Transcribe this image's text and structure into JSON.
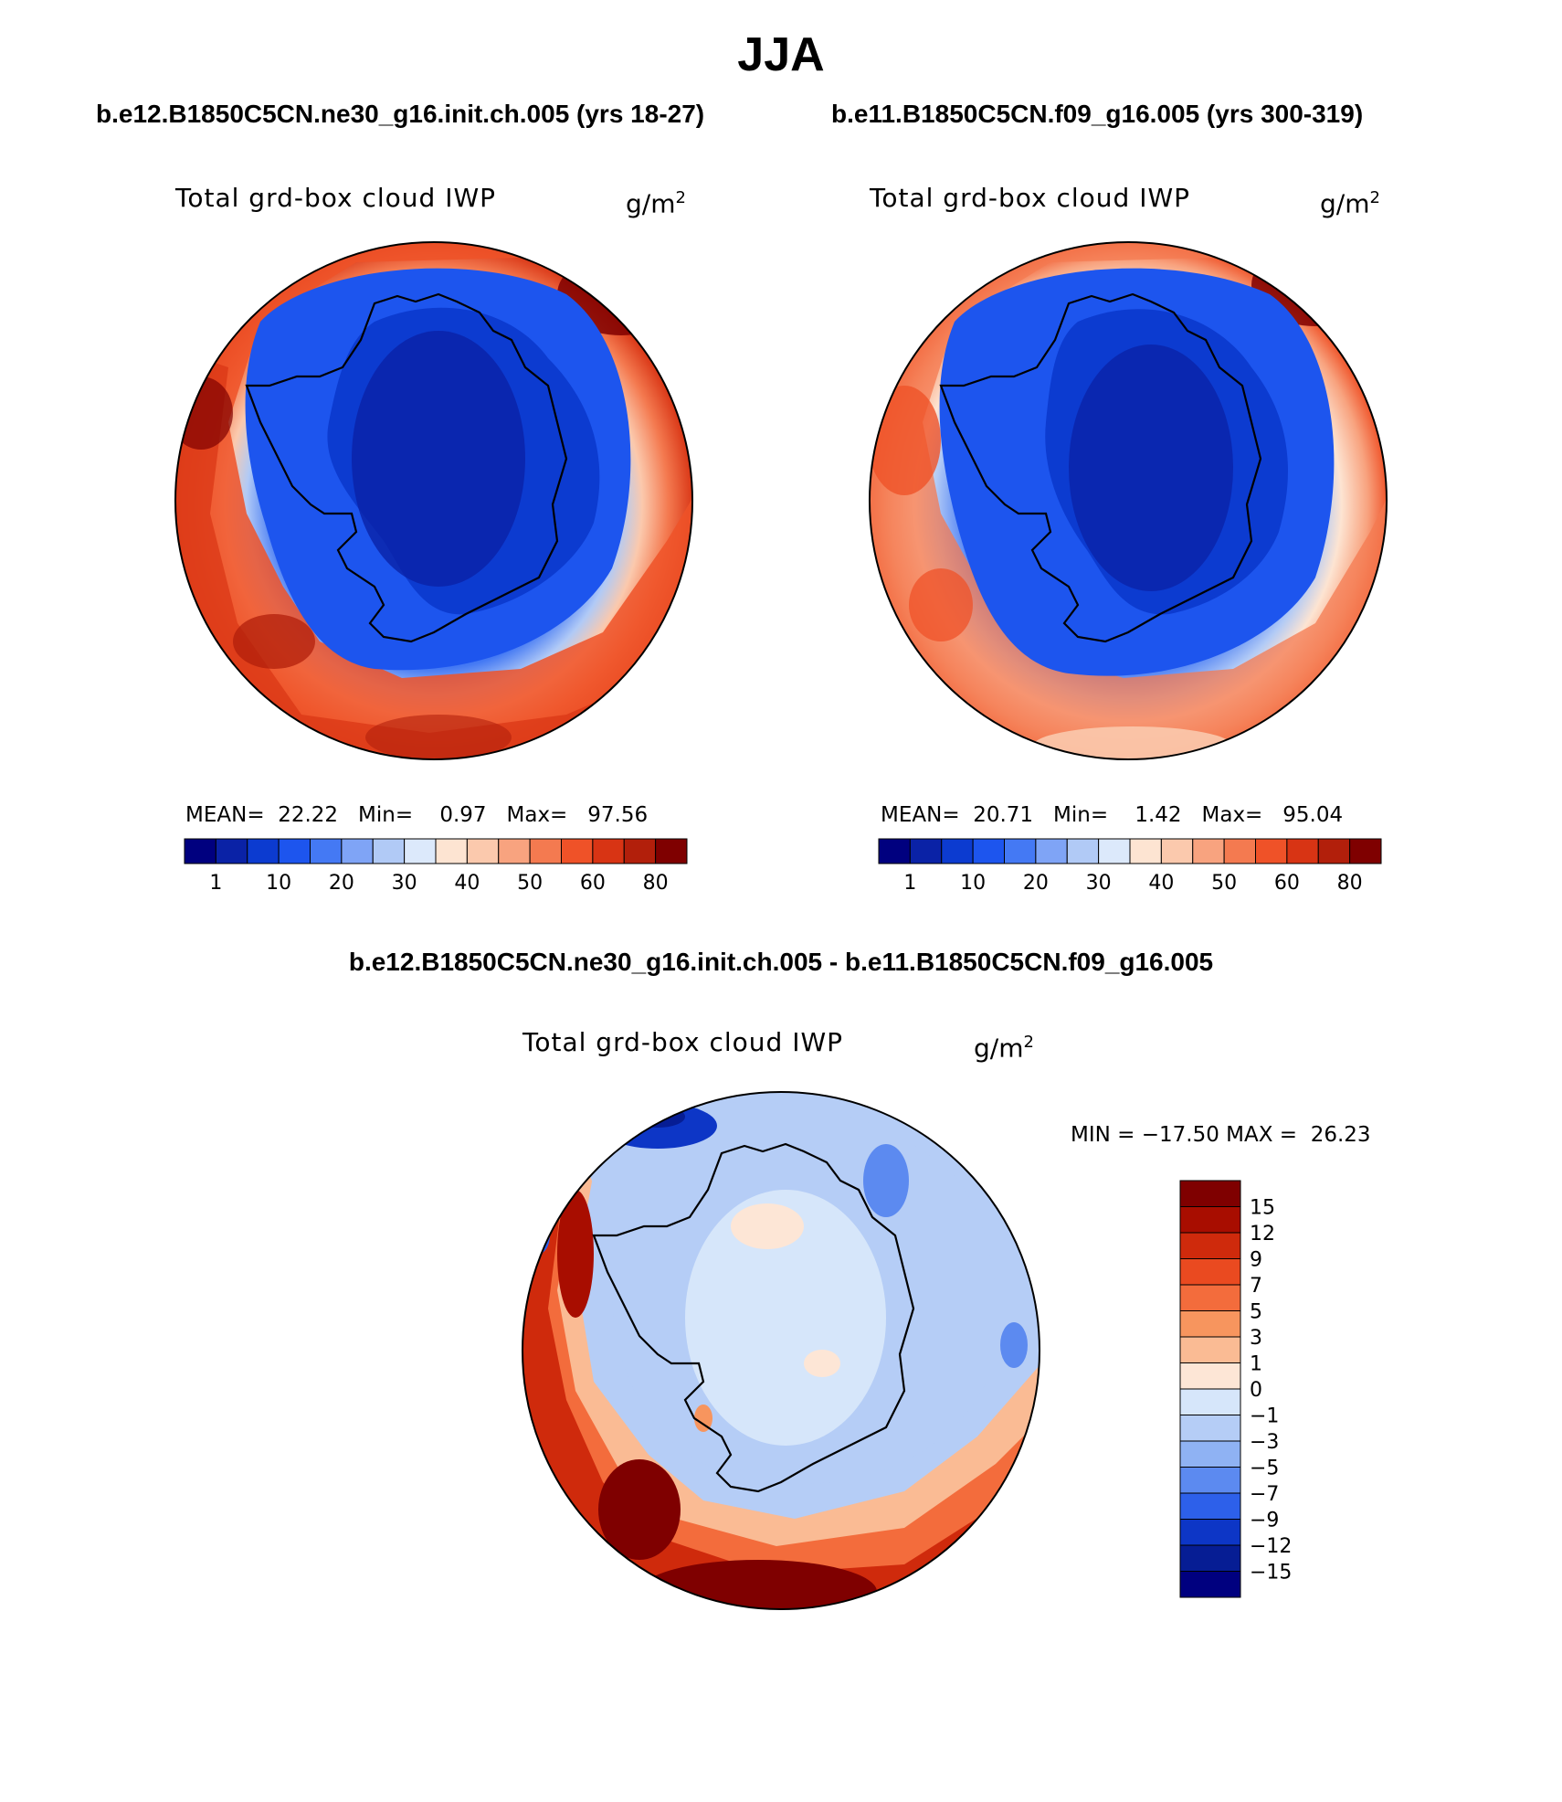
{
  "figure": {
    "title": "JJA",
    "diff_title": "b.e12.B1850C5CN.ne30_g16.init.ch.005 - b.e11.B1850C5CN.f09_g16.005"
  },
  "chart_data": [
    {
      "type": "heatmap",
      "projection": "south polar stereographic",
      "case": "b.e12.B1850C5CN.ne30_g16.init.ch.005 (yrs 18-27)",
      "variable": "Total grd-box cloud IWP",
      "units": "g/m",
      "units_exponent": "2",
      "mean_label": "MEAN=",
      "mean": "22.22",
      "min_label": "Min=",
      "min": "0.97",
      "max_label": "Max=",
      "max": "97.56",
      "colorbar_levels": [
        "1",
        "10",
        "20",
        "30",
        "40",
        "50",
        "60",
        "80"
      ],
      "colorbar_colors": [
        "#00007f",
        "#0a22a6",
        "#0c3bd0",
        "#1d55ee",
        "#4479f4",
        "#7fa4f6",
        "#b1caf6",
        "#dce9fb",
        "#fde4d2",
        "#fbc9ad",
        "#f8a37f",
        "#f47a50",
        "#ef5228",
        "#d83414",
        "#b21f0b",
        "#7f0000"
      ]
    },
    {
      "type": "heatmap",
      "projection": "south polar stereographic",
      "case": "b.e11.B1850C5CN.f09_g16.005 (yrs 300-319)",
      "variable": "Total grd-box cloud IWP",
      "units": "g/m",
      "units_exponent": "2",
      "mean_label": "MEAN=",
      "mean": "20.71",
      "min_label": "Min=",
      "min": "1.42",
      "max_label": "Max=",
      "max": "95.04",
      "colorbar_levels": [
        "1",
        "10",
        "20",
        "30",
        "40",
        "50",
        "60",
        "80"
      ],
      "colorbar_colors": [
        "#00007f",
        "#0a22a6",
        "#0c3bd0",
        "#1d55ee",
        "#4479f4",
        "#7fa4f6",
        "#b1caf6",
        "#dce9fb",
        "#fde4d2",
        "#fbc9ad",
        "#f8a37f",
        "#f47a50",
        "#ef5228",
        "#d83414",
        "#b21f0b",
        "#7f0000"
      ]
    },
    {
      "type": "heatmap",
      "projection": "south polar stereographic",
      "variable": "Total grd-box cloud IWP",
      "units": "g/m",
      "units_exponent": "2",
      "minmax_text": "MIN = −17.50 MAX =  26.23",
      "min": -17.5,
      "max": 26.23,
      "colorbar_levels": [
        "15",
        "12",
        "9",
        "7",
        "5",
        "3",
        "1",
        "0",
        "−1",
        "−3",
        "−5",
        "−7",
        "−9",
        "−12",
        "−15"
      ],
      "colorbar_colors": [
        "#7f0000",
        "#a80d00",
        "#cf2a0c",
        "#ea4a20",
        "#f36c3c",
        "#f7955e",
        "#fabb94",
        "#fde6d6",
        "#d6e6fa",
        "#b5cdf6",
        "#8fb2f3",
        "#5c8af0",
        "#2d60ea",
        "#0d36c6",
        "#061d94",
        "#00007f"
      ]
    }
  ]
}
